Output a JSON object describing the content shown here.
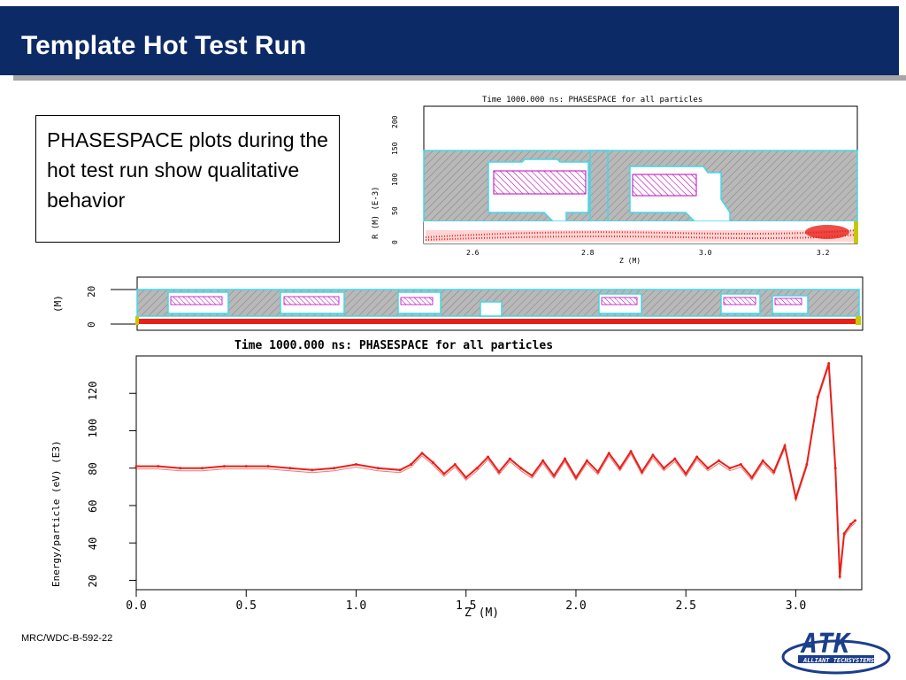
{
  "slide": {
    "title": "Template Hot Test Run",
    "body_text": "PHASESPACE plots during the hot test run show qualitative behavior",
    "footer": "MRC/WDC-B-592-22"
  },
  "logo": {
    "wordmark": "ATK",
    "tagline": "ALLIANT TECHSYSTEMS",
    "color": "#1a3e8c"
  },
  "top_plot": {
    "title": "Time 1000.000 ns:  PHASESPACE for all particles",
    "ylabel": "R (M) (E-3)",
    "xlabel": "Z (M)",
    "x_ticks": [
      "2.6",
      "2.8",
      "3.0",
      "3.2"
    ],
    "y_ticks": [
      "0",
      "50",
      "100",
      "150",
      "200"
    ]
  },
  "mid_plot": {
    "ylabel": "(M)",
    "y_ticks": [
      "0",
      "20"
    ]
  },
  "energy_plot": {
    "title": "Time 1000.000 ns:   PHASESPACE for all particles",
    "ylabel": "Energy/particle (eV) (E3)",
    "xlabel": "Z    (M)"
  },
  "chart_data": {
    "type": "line",
    "title": "Time 1000.000 ns:   PHASESPACE for all particles",
    "xlabel": "Z (M)",
    "ylabel": "Energy/particle (eV) (E3)",
    "xlim": [
      0.0,
      3.3
    ],
    "ylim": [
      15,
      140
    ],
    "x_ticks": [
      "0.0",
      "0.5",
      "1.0",
      "1.5",
      "2.0",
      "2.5",
      "3.0"
    ],
    "y_ticks": [
      "20",
      "40",
      "60",
      "80",
      "100",
      "120"
    ],
    "color": "#e8201a",
    "x": [
      0.0,
      0.1,
      0.2,
      0.3,
      0.4,
      0.5,
      0.6,
      0.7,
      0.8,
      0.9,
      1.0,
      1.1,
      1.2,
      1.25,
      1.3,
      1.35,
      1.4,
      1.45,
      1.5,
      1.55,
      1.6,
      1.65,
      1.7,
      1.75,
      1.8,
      1.85,
      1.9,
      1.95,
      2.0,
      2.05,
      2.1,
      2.15,
      2.2,
      2.25,
      2.3,
      2.35,
      2.4,
      2.45,
      2.5,
      2.55,
      2.6,
      2.65,
      2.7,
      2.75,
      2.8,
      2.85,
      2.9,
      2.95,
      3.0,
      3.05,
      3.1,
      3.15,
      3.18,
      3.2,
      3.22,
      3.25,
      3.27
    ],
    "y": [
      81,
      81,
      80,
      80,
      81,
      81,
      81,
      80,
      79,
      80,
      82,
      80,
      79,
      82,
      88,
      83,
      77,
      82,
      75,
      80,
      86,
      78,
      85,
      80,
      76,
      84,
      76,
      85,
      75,
      84,
      78,
      88,
      80,
      89,
      78,
      87,
      80,
      85,
      77,
      86,
      80,
      84,
      80,
      82,
      75,
      84,
      78,
      92,
      64,
      82,
      118,
      136,
      80,
      22,
      45,
      50,
      52
    ]
  }
}
